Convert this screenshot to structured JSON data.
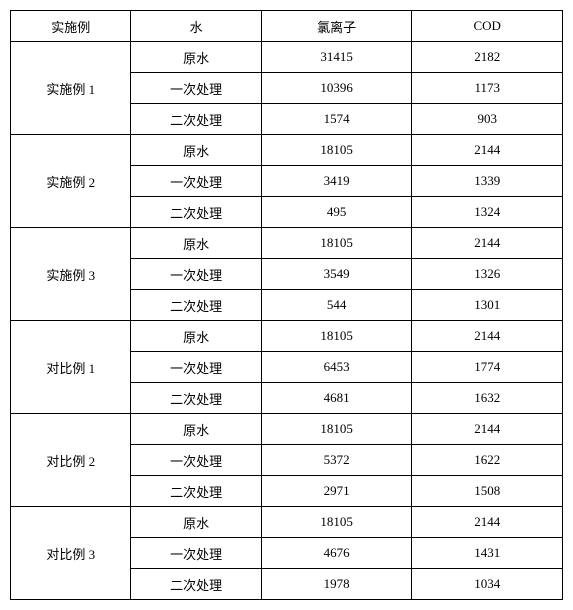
{
  "headers": {
    "example": "实施例",
    "water": "水",
    "chloride": "氯离子",
    "cod": "COD"
  },
  "water_labels": {
    "raw": "原水",
    "first": "一次处理",
    "second": "二次处理"
  },
  "groups": [
    {
      "name": "实施例 1",
      "rows": [
        {
          "water": "raw",
          "chloride": "31415",
          "cod": "2182"
        },
        {
          "water": "first",
          "chloride": "10396",
          "cod": "1173"
        },
        {
          "water": "second",
          "chloride": "1574",
          "cod": "903"
        }
      ]
    },
    {
      "name": "实施例 2",
      "rows": [
        {
          "water": "raw",
          "chloride": "18105",
          "cod": "2144"
        },
        {
          "water": "first",
          "chloride": "3419",
          "cod": "1339"
        },
        {
          "water": "second",
          "chloride": "495",
          "cod": "1324"
        }
      ]
    },
    {
      "name": "实施例 3",
      "rows": [
        {
          "water": "raw",
          "chloride": "18105",
          "cod": "2144"
        },
        {
          "water": "first",
          "chloride": "3549",
          "cod": "1326"
        },
        {
          "water": "second",
          "chloride": "544",
          "cod": "1301"
        }
      ]
    },
    {
      "name": "对比例 1",
      "rows": [
        {
          "water": "raw",
          "chloride": "18105",
          "cod": "2144"
        },
        {
          "water": "first",
          "chloride": "6453",
          "cod": "1774"
        },
        {
          "water": "second",
          "chloride": "4681",
          "cod": "1632"
        }
      ]
    },
    {
      "name": "对比例 2",
      "rows": [
        {
          "water": "raw",
          "chloride": "18105",
          "cod": "2144"
        },
        {
          "water": "first",
          "chloride": "5372",
          "cod": "1622"
        },
        {
          "water": "second",
          "chloride": "2971",
          "cod": "1508"
        }
      ]
    },
    {
      "name": "对比例 3",
      "rows": [
        {
          "water": "raw",
          "chloride": "18105",
          "cod": "2144"
        },
        {
          "water": "first",
          "chloride": "4676",
          "cod": "1431"
        },
        {
          "water": "second",
          "chloride": "1978",
          "cod": "1034"
        }
      ]
    }
  ]
}
